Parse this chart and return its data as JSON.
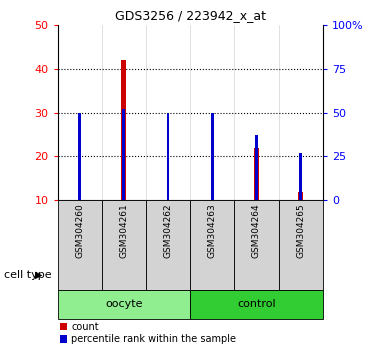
{
  "title": "GDS3256 / 223942_x_at",
  "samples": [
    "GSM304260",
    "GSM304261",
    "GSM304262",
    "GSM304263",
    "GSM304264",
    "GSM304265"
  ],
  "count_values": [
    10,
    42,
    10,
    10,
    22,
    12
  ],
  "percentile_values": [
    50,
    52,
    50,
    50,
    37,
    27
  ],
  "ylim_left": [
    10,
    50
  ],
  "ylim_right": [
    0,
    100
  ],
  "yticks_left": [
    10,
    20,
    30,
    40,
    50
  ],
  "yticks_right": [
    0,
    25,
    50,
    75,
    100
  ],
  "ytick_labels_right": [
    "0",
    "25",
    "50",
    "75",
    "100%"
  ],
  "groups": [
    {
      "label": "oocyte",
      "indices": [
        0,
        1,
        2
      ],
      "color": "#90ee90"
    },
    {
      "label": "control",
      "indices": [
        3,
        4,
        5
      ],
      "color": "#32cd32"
    }
  ],
  "count_color": "#cc0000",
  "percentile_color": "#0000cc",
  "cell_type_label": "cell type",
  "legend_items": [
    "count",
    "percentile rank within the sample"
  ],
  "sample_bg_color": "#d3d3d3",
  "plot_bg_color": "#ffffff"
}
